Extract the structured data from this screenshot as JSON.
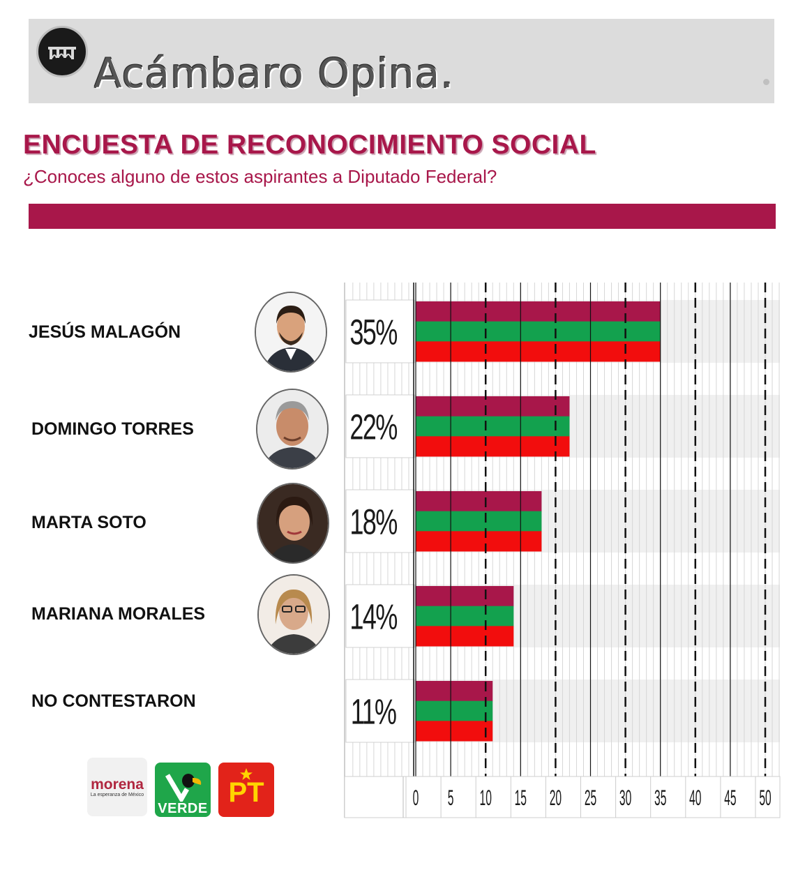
{
  "header": {
    "brand_title": "Acámbaro Opina."
  },
  "survey": {
    "title": "ENCUESTA DE RECONOCIMIENTO SOCIAL",
    "question": "¿Conoces alguno de estos aspirantes a Diputado Federal?"
  },
  "candidates": [
    {
      "name": "JESÚS MALAGÓN",
      "percent_label": "35%"
    },
    {
      "name": "DOMINGO TORRES",
      "percent_label": "22%"
    },
    {
      "name": "MARTA SOTO",
      "percent_label": "18%"
    },
    {
      "name": "MARIANA MORALES",
      "percent_label": "14%"
    },
    {
      "name": "NO CONTESTARON",
      "percent_label": "11%"
    }
  ],
  "chart_data": {
    "type": "bar",
    "orientation": "horizontal",
    "categories": [
      "JESÚS MALAGÓN",
      "DOMINGO TORRES",
      "MARTA SOTO",
      "MARIANA MORALES",
      "NO CONTESTARON"
    ],
    "values": [
      35,
      22,
      18,
      14,
      11
    ],
    "value_labels": [
      "35%",
      "22%",
      "18%",
      "14%",
      "11%"
    ],
    "xlim": [
      0,
      50
    ],
    "x_ticks": [
      "0",
      "5",
      "10",
      "15",
      "20",
      "25",
      "30",
      "35",
      "40",
      "45",
      "50"
    ],
    "bar_stripe_colors": [
      "#a8174a",
      "#13a14e",
      "#f20d0d"
    ],
    "grid": true
  },
  "parties": {
    "morena": {
      "name": "morena",
      "tagline": "La esperanza de México"
    },
    "verde": {
      "name": "VERDE"
    },
    "pt": {
      "name": "PT"
    }
  },
  "colors": {
    "accent": "#a8174a",
    "green": "#13a14e",
    "red": "#f20d0d",
    "header_bg": "#dcdcdc"
  }
}
